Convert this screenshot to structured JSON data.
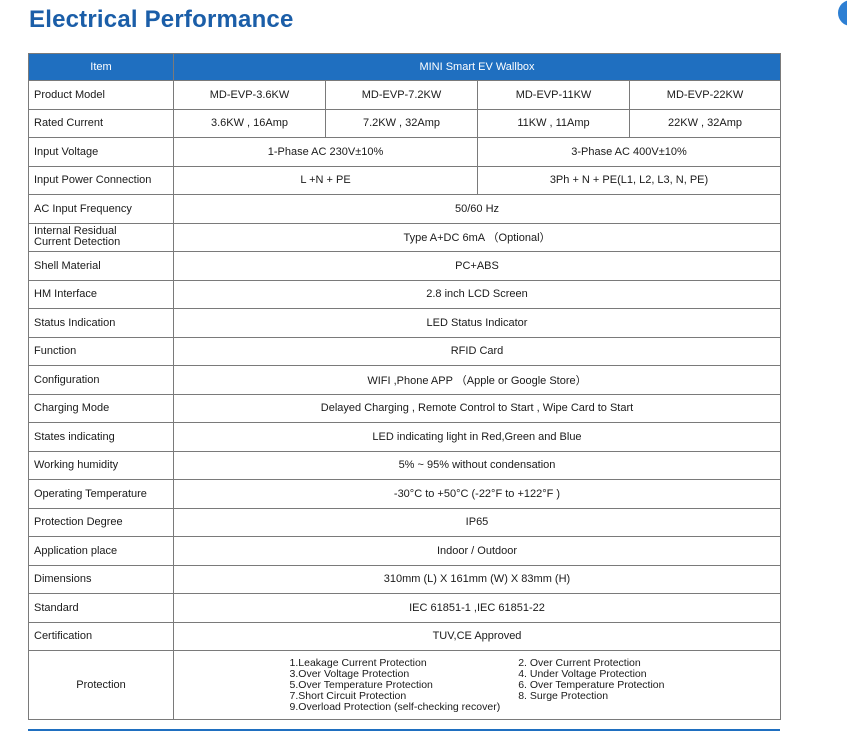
{
  "page": {
    "title": "Electrical Performance"
  },
  "table": {
    "header": {
      "item": "Item",
      "product": "MINI Smart EV Wallbox"
    },
    "rows": [
      {
        "label": "Product Model",
        "values": [
          "MD-EVP-3.6KW",
          "MD-EVP-7.2KW",
          "MD-EVP-11KW",
          "MD-EVP-22KW"
        ]
      },
      {
        "label": "Rated Current",
        "values": [
          "3.6KW , 16Amp",
          "7.2KW , 32Amp",
          "11KW , 11Amp",
          "22KW , 32Amp"
        ]
      },
      {
        "label": "Input Voltage",
        "values": [
          "1-Phase  AC 230V±10%",
          "3-Phase  AC 400V±10%"
        ]
      },
      {
        "label": "Input Power Connection",
        "values": [
          "L +N + PE",
          "3Ph + N + PE(L1, L2, L3, N, PE)"
        ]
      },
      {
        "label": "AC Input Frequency",
        "values": [
          "50/60 Hz"
        ]
      },
      {
        "label_line1": "Internal Residual",
        "label_line2": "Current Detection",
        "values": [
          "Type A+DC 6mA （Optional）"
        ]
      },
      {
        "label": "Shell Material",
        "values": [
          "PC+ABS"
        ]
      },
      {
        "label": "HM Interface",
        "values": [
          "2.8 inch LCD Screen"
        ]
      },
      {
        "label": "Status Indication",
        "values": [
          "LED Status Indicator"
        ]
      },
      {
        "label": "Function",
        "values": [
          "RFID Card"
        ]
      },
      {
        "label": "Configuration",
        "values": [
          "WIFI ,Phone APP （Apple or Google Store）"
        ]
      },
      {
        "label": "Charging Mode",
        "values": [
          "Delayed Charging , Remote Control to Start , Wipe Card to Start"
        ]
      },
      {
        "label": "States indicating",
        "values": [
          "LED indicating light in Red,Green and Blue"
        ]
      },
      {
        "label": "Working humidity",
        "values": [
          "5% ~ 95% without condensation"
        ]
      },
      {
        "label": "Operating Temperature",
        "values": [
          "-30°C to +50°C  (-22°F  to +122°F )"
        ]
      },
      {
        "label": "Protection Degree",
        "values": [
          "IP65"
        ]
      },
      {
        "label": "Application place",
        "values": [
          "Indoor / Outdoor"
        ]
      },
      {
        "label": "Dimensions",
        "values": [
          "310mm (L) X 161mm (W) X 83mm (H)"
        ]
      },
      {
        "label": "Standard",
        "values": [
          "IEC 61851-1 ,IEC 61851-22"
        ]
      },
      {
        "label": "Certification",
        "values": [
          "TUV,CE Approved"
        ]
      }
    ],
    "protection": {
      "label": "Protection",
      "left": [
        "1.Leakage Current Protection",
        "3.Over Voltage Protection",
        "5.Over Temperature Protection",
        "7.Short Circuit Protection",
        "9.Overload Protection (self-checking recover)"
      ],
      "right": [
        "2. Over Current Protection",
        "4. Under Voltage Protection",
        "6. Over Temperature Protection",
        "8. Surge Protection"
      ]
    }
  }
}
